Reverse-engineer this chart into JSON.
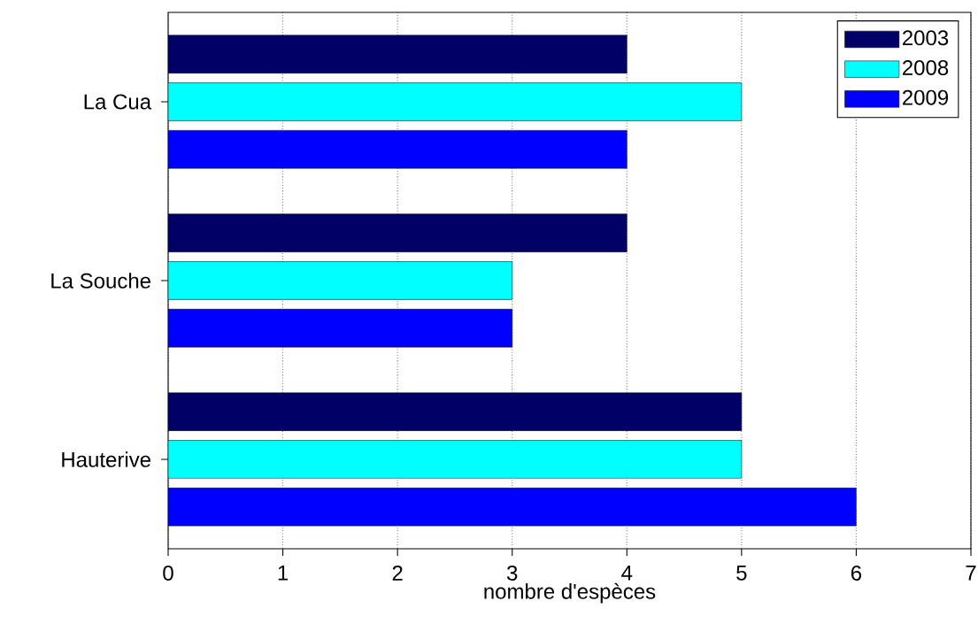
{
  "chart_data": {
    "type": "bar",
    "orientation": "horizontal",
    "xlabel": "nombre d'espèces",
    "categories": [
      "La Cua",
      "La Souche",
      "Hauterive"
    ],
    "series": [
      {
        "name": "2003",
        "color": "#000066",
        "values": [
          4,
          4,
          5
        ]
      },
      {
        "name": "2008",
        "color": "#00ffff",
        "values": [
          5,
          3,
          5
        ]
      },
      {
        "name": "2009",
        "color": "#0000ff",
        "values": [
          4,
          3,
          6
        ]
      }
    ],
    "xlim": [
      0,
      7
    ],
    "xticks": [
      0,
      1,
      2,
      3,
      4,
      5,
      6,
      7
    ],
    "grid": "x",
    "legend": "top right"
  }
}
